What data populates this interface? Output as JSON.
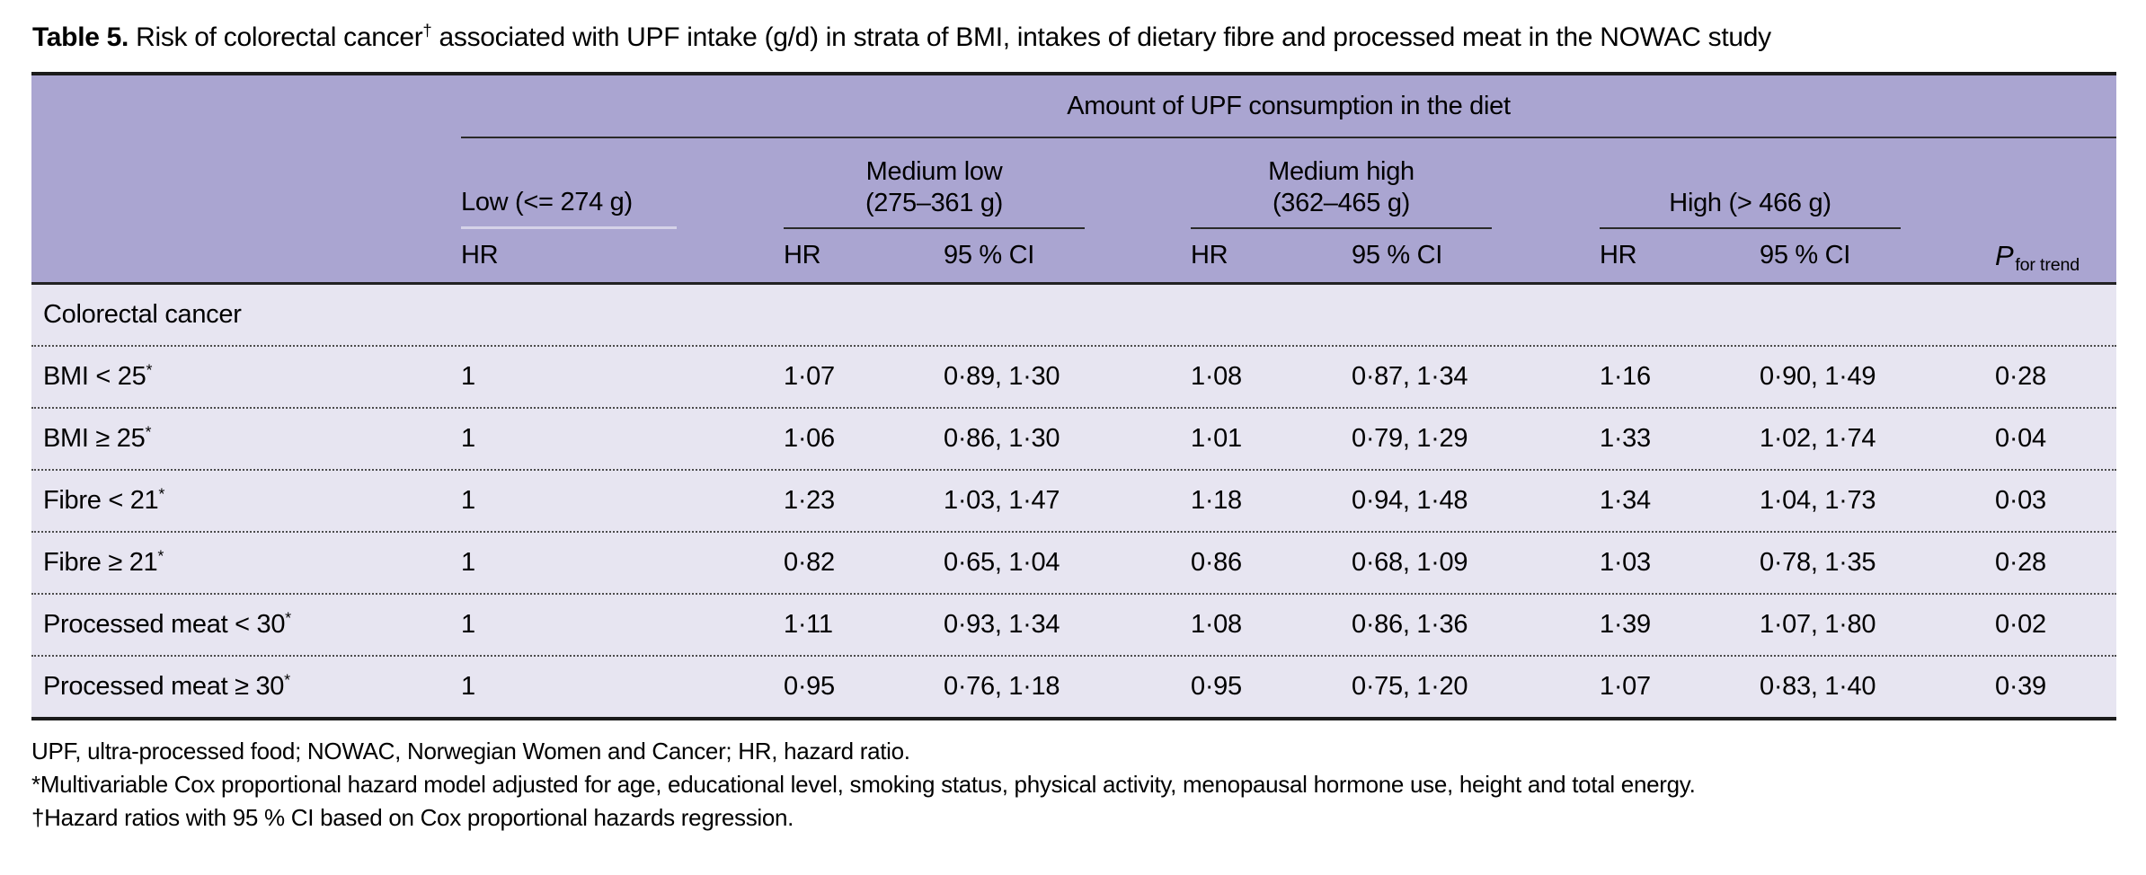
{
  "title": {
    "bold": "Table 5.",
    "before_sup": " Risk of colorectal cancer",
    "sup": "†",
    "after_sup": " associated with UPF intake (g/d) in strata of BMI, intakes of dietary fibre and processed meat in the NOWAC study"
  },
  "table": {
    "spanner_title": "Amount of UPF consumption in the diet",
    "groups": {
      "low": "Low (<= 274 g)",
      "medium_low_line1": "Medium low",
      "medium_low_line2": "(275–361 g)",
      "medium_high_line1": "Medium high",
      "medium_high_line2": "(362–465 g)",
      "high": "High (> 466 g)"
    },
    "subheaders": {
      "hr": "HR",
      "ci": "95 % CI",
      "p_main": "P",
      "p_sub": "for trend"
    },
    "section_label": "Colorectal cancer",
    "rows": [
      {
        "label": "BMI < 25",
        "sup": "*",
        "low_hr": "1",
        "ml_hr": "1·07",
        "ml_ci": "0·89, 1·30",
        "mh_hr": "1·08",
        "mh_ci": "0·87, 1·34",
        "h_hr": "1·16",
        "h_ci": "0·90, 1·49",
        "p": "0·28"
      },
      {
        "label": "BMI ≥ 25",
        "sup": "*",
        "low_hr": "1",
        "ml_hr": "1·06",
        "ml_ci": "0·86, 1·30",
        "mh_hr": "1·01",
        "mh_ci": "0·79, 1·29",
        "h_hr": "1·33",
        "h_ci": "1·02, 1·74",
        "p": "0·04"
      },
      {
        "label": "Fibre < 21",
        "sup": "*",
        "low_hr": "1",
        "ml_hr": "1·23",
        "ml_ci": "1·03, 1·47",
        "mh_hr": "1·18",
        "mh_ci": "0·94, 1·48",
        "h_hr": "1·34",
        "h_ci": "1·04, 1·73",
        "p": "0·03"
      },
      {
        "label": "Fibre ≥ 21",
        "sup": "*",
        "low_hr": "1",
        "ml_hr": "0·82",
        "ml_ci": "0·65, 1·04",
        "mh_hr": "0·86",
        "mh_ci": "0·68, 1·09",
        "h_hr": "1·03",
        "h_ci": "0·78, 1·35",
        "p": "0·28"
      },
      {
        "label": "Processed meat < 30",
        "sup": "*",
        "low_hr": "1",
        "ml_hr": "1·11",
        "ml_ci": "0·93, 1·34",
        "mh_hr": "1·08",
        "mh_ci": "0·86, 1·36",
        "h_hr": "1·39",
        "h_ci": "1·07, 1·80",
        "p": "0·02"
      },
      {
        "label": "Processed meat ≥ 30",
        "sup": "*",
        "low_hr": "1",
        "ml_hr": "0·95",
        "ml_ci": "0·76, 1·18",
        "mh_hr": "0·95",
        "mh_ci": "0·75, 1·20",
        "h_hr": "1·07",
        "h_ci": "0·83, 1·40",
        "p": "0·39"
      }
    ]
  },
  "footnotes": [
    "UPF, ultra-processed food; NOWAC, Norwegian Women and Cancer; HR, hazard ratio.",
    "*Multivariable Cox proportional hazard model adjusted for age, educational level, smoking status, physical activity, menopausal hormone use, height and total energy.",
    "†Hazard ratios with 95 % CI based on Cox proportional hazards regression."
  ],
  "colors": {
    "header_bg": "#aaa5d1",
    "body_bg": "#e7e5f1",
    "rule_dark": "#1b1b1b"
  }
}
